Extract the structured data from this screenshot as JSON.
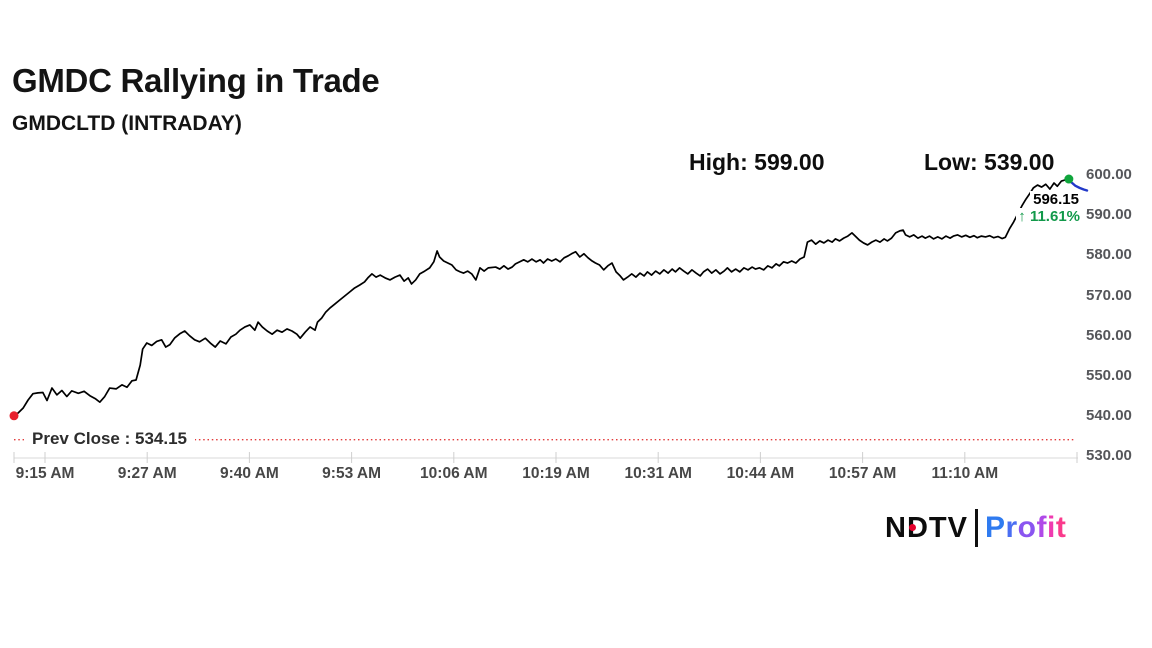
{
  "header": {
    "title": "GMDC Rallying in Trade",
    "subtitle": "GMDCLTD (INTRADAY)"
  },
  "stats": {
    "high_label": "High: 599.00",
    "low_label": "Low: 539.00"
  },
  "last_trade": {
    "price_label": "596.15",
    "up_arrow": "↑",
    "pct_label": "11.61%",
    "pct_color": "#12994a"
  },
  "prev_close": {
    "label": "Prev Close : 534.15",
    "value": 534.15,
    "line_color": "#e23a3a"
  },
  "logo": {
    "ndtv_text": "NDTV",
    "dot_color": "#e4002b",
    "profit_text": "Profit",
    "profit_letter_colors": [
      "#2f7bf0",
      "#4a6ef2",
      "#8a55f0",
      "#b04ae8",
      "#ef3bb0",
      "#fa3a8c"
    ]
  },
  "chart_data": {
    "type": "line",
    "title": "GMDCLTD intraday price",
    "x_axis": {
      "tick_labels": [
        "9:15 AM",
        "9:27 AM",
        "9:40 AM",
        "9:53 AM",
        "10:06 AM",
        "10:19 AM",
        "10:31 AM",
        "10:44 AM",
        "10:57 AM",
        "11:10 AM"
      ],
      "xlim_minutes": [
        0,
        130.1
      ],
      "grid": false
    },
    "y_axis": {
      "tick_labels": [
        "600.00",
        "590.00",
        "580.00",
        "570.00",
        "560.00",
        "550.00",
        "540.00",
        "530.00"
      ],
      "tick_values": [
        600,
        590,
        580,
        570,
        560,
        550,
        540,
        530
      ],
      "ylim": [
        530,
        600
      ],
      "grid": false
    },
    "high": 599.0,
    "low": 539.0,
    "last_price": 596.15,
    "change_pct": 11.61,
    "prev_close": 534.15,
    "line_color": "#000000",
    "axis_color": "#d8d8d8",
    "tick_color": "#cfcfcf",
    "tail": {
      "color": "#2239c9",
      "from_t": 127.9
    },
    "markers": {
      "open": {
        "t": 0,
        "price": 540.1,
        "color": "#e8212e"
      },
      "high": {
        "t": 127.9,
        "price": 599.0,
        "color": "#0fa53c"
      }
    },
    "series": [
      {
        "name": "price",
        "points": [
          [
            0,
            540.1
          ],
          [
            0.5,
            540.8
          ],
          [
            1.1,
            542.0
          ],
          [
            1.7,
            544.0
          ],
          [
            2.3,
            545.6
          ],
          [
            2.9,
            545.8
          ],
          [
            3.5,
            545.9
          ],
          [
            4.0,
            543.9
          ],
          [
            4.6,
            547.0
          ],
          [
            5.2,
            545.3
          ],
          [
            5.8,
            546.4
          ],
          [
            6.4,
            544.9
          ],
          [
            7.0,
            546.3
          ],
          [
            7.8,
            545.7
          ],
          [
            8.5,
            546.2
          ],
          [
            9.2,
            545.1
          ],
          [
            9.9,
            544.3
          ],
          [
            10.4,
            543.5
          ],
          [
            11.0,
            544.9
          ],
          [
            11.6,
            547.0
          ],
          [
            12.4,
            546.8
          ],
          [
            13.1,
            547.8
          ],
          [
            13.7,
            547.2
          ],
          [
            14.3,
            548.8
          ],
          [
            14.8,
            549.0
          ],
          [
            15.3,
            552.7
          ],
          [
            15.6,
            556.7
          ],
          [
            16.1,
            558.2
          ],
          [
            16.7,
            557.6
          ],
          [
            17.3,
            558.6
          ],
          [
            17.9,
            559.0
          ],
          [
            18.4,
            557.2
          ],
          [
            18.9,
            557.8
          ],
          [
            19.5,
            559.5
          ],
          [
            20.1,
            560.5
          ],
          [
            20.7,
            561.2
          ],
          [
            21.3,
            560.0
          ],
          [
            21.9,
            559.0
          ],
          [
            22.5,
            558.5
          ],
          [
            23.2,
            559.4
          ],
          [
            23.8,
            558.2
          ],
          [
            24.4,
            557.2
          ],
          [
            25.0,
            558.7
          ],
          [
            25.7,
            558.0
          ],
          [
            26.3,
            559.7
          ],
          [
            26.9,
            560.4
          ],
          [
            27.4,
            561.4
          ],
          [
            28.0,
            562.2
          ],
          [
            28.6,
            562.7
          ],
          [
            29.2,
            561.4
          ],
          [
            29.6,
            563.4
          ],
          [
            30.1,
            562.2
          ],
          [
            30.7,
            561.2
          ],
          [
            31.3,
            560.4
          ],
          [
            31.9,
            561.4
          ],
          [
            32.5,
            560.9
          ],
          [
            33.1,
            561.7
          ],
          [
            33.7,
            561.2
          ],
          [
            34.3,
            560.4
          ],
          [
            34.7,
            559.4
          ],
          [
            35.3,
            560.9
          ],
          [
            35.9,
            562.2
          ],
          [
            36.5,
            561.4
          ],
          [
            36.8,
            563.4
          ],
          [
            37.3,
            564.4
          ],
          [
            37.8,
            565.9
          ],
          [
            38.3,
            566.9
          ],
          [
            38.9,
            567.9
          ],
          [
            39.5,
            568.9
          ],
          [
            40.1,
            569.9
          ],
          [
            40.7,
            570.9
          ],
          [
            41.3,
            571.9
          ],
          [
            41.9,
            572.6
          ],
          [
            42.5,
            573.4
          ],
          [
            42.9,
            574.4
          ],
          [
            43.4,
            575.4
          ],
          [
            43.9,
            574.6
          ],
          [
            44.4,
            575.1
          ],
          [
            45.0,
            574.4
          ],
          [
            45.6,
            573.9
          ],
          [
            46.2,
            574.6
          ],
          [
            46.8,
            575.1
          ],
          [
            47.3,
            573.6
          ],
          [
            47.8,
            574.4
          ],
          [
            48.2,
            572.9
          ],
          [
            48.7,
            573.9
          ],
          [
            49.2,
            575.4
          ],
          [
            49.8,
            576.1
          ],
          [
            50.4,
            576.9
          ],
          [
            50.9,
            578.4
          ],
          [
            51.3,
            581.1
          ],
          [
            51.6,
            579.6
          ],
          [
            52.1,
            578.6
          ],
          [
            52.6,
            578.1
          ],
          [
            53.1,
            577.6
          ],
          [
            53.6,
            576.4
          ],
          [
            54.1,
            575.9
          ],
          [
            54.5,
            575.6
          ],
          [
            55.0,
            576.1
          ],
          [
            55.5,
            575.4
          ],
          [
            56.0,
            573.9
          ],
          [
            56.5,
            576.9
          ],
          [
            57.0,
            576.1
          ],
          [
            57.5,
            576.9
          ],
          [
            58.4,
            577.1
          ],
          [
            58.9,
            576.6
          ],
          [
            59.4,
            577.4
          ],
          [
            59.9,
            576.6
          ],
          [
            60.4,
            577.1
          ],
          [
            60.8,
            577.9
          ],
          [
            61.3,
            578.4
          ],
          [
            61.8,
            578.9
          ],
          [
            62.3,
            578.4
          ],
          [
            62.8,
            579.1
          ],
          [
            63.3,
            578.4
          ],
          [
            63.8,
            578.9
          ],
          [
            64.2,
            578.1
          ],
          [
            64.7,
            579.1
          ],
          [
            65.2,
            578.6
          ],
          [
            65.7,
            579.1
          ],
          [
            66.2,
            578.4
          ],
          [
            66.7,
            579.4
          ],
          [
            67.2,
            579.9
          ],
          [
            67.6,
            580.4
          ],
          [
            68.1,
            580.9
          ],
          [
            68.6,
            579.6
          ],
          [
            69.1,
            580.4
          ],
          [
            69.6,
            579.4
          ],
          [
            70.1,
            578.6
          ],
          [
            70.5,
            578.1
          ],
          [
            71.0,
            577.6
          ],
          [
            71.5,
            576.4
          ],
          [
            72.0,
            577.4
          ],
          [
            72.5,
            578.1
          ],
          [
            73.0,
            575.9
          ],
          [
            73.5,
            574.9
          ],
          [
            73.9,
            573.9
          ],
          [
            74.4,
            574.6
          ],
          [
            74.9,
            575.4
          ],
          [
            75.4,
            574.6
          ],
          [
            75.9,
            575.6
          ],
          [
            76.4,
            574.9
          ],
          [
            76.8,
            575.9
          ],
          [
            77.3,
            575.1
          ],
          [
            77.8,
            576.1
          ],
          [
            78.3,
            575.4
          ],
          [
            78.8,
            576.4
          ],
          [
            79.3,
            575.6
          ],
          [
            79.8,
            576.6
          ],
          [
            80.2,
            575.9
          ],
          [
            80.7,
            576.9
          ],
          [
            81.2,
            576.1
          ],
          [
            81.7,
            575.4
          ],
          [
            82.2,
            576.4
          ],
          [
            82.7,
            575.6
          ],
          [
            83.2,
            574.9
          ],
          [
            83.6,
            575.9
          ],
          [
            84.1,
            576.6
          ],
          [
            84.6,
            575.6
          ],
          [
            85.1,
            576.4
          ],
          [
            85.6,
            575.4
          ],
          [
            86.1,
            576.1
          ],
          [
            86.5,
            576.9
          ],
          [
            87.0,
            575.9
          ],
          [
            87.5,
            576.6
          ],
          [
            88.0,
            575.9
          ],
          [
            88.5,
            576.9
          ],
          [
            89.0,
            576.4
          ],
          [
            89.5,
            577.1
          ],
          [
            89.9,
            576.6
          ],
          [
            90.4,
            576.9
          ],
          [
            90.9,
            576.4
          ],
          [
            91.4,
            577.4
          ],
          [
            91.9,
            576.9
          ],
          [
            92.4,
            577.9
          ],
          [
            92.8,
            577.4
          ],
          [
            93.3,
            578.4
          ],
          [
            93.8,
            578.1
          ],
          [
            94.3,
            578.6
          ],
          [
            94.8,
            578.1
          ],
          [
            95.3,
            579.1
          ],
          [
            95.8,
            579.6
          ],
          [
            96.2,
            583.3
          ],
          [
            96.7,
            583.8
          ],
          [
            97.2,
            582.8
          ],
          [
            97.7,
            583.6
          ],
          [
            98.2,
            583.1
          ],
          [
            98.7,
            583.8
          ],
          [
            99.2,
            583.3
          ],
          [
            99.6,
            584.1
          ],
          [
            100.1,
            583.6
          ],
          [
            100.6,
            584.3
          ],
          [
            101.1,
            584.8
          ],
          [
            101.6,
            585.6
          ],
          [
            102.1,
            584.6
          ],
          [
            102.5,
            583.8
          ],
          [
            103.0,
            583.1
          ],
          [
            103.5,
            582.6
          ],
          [
            104.0,
            583.3
          ],
          [
            104.5,
            583.8
          ],
          [
            105.0,
            583.3
          ],
          [
            105.5,
            584.1
          ],
          [
            105.9,
            583.6
          ],
          [
            106.4,
            584.3
          ],
          [
            106.9,
            585.6
          ],
          [
            107.4,
            586.1
          ],
          [
            107.8,
            586.3
          ],
          [
            108.1,
            585.1
          ],
          [
            108.6,
            584.6
          ],
          [
            109.1,
            585.1
          ],
          [
            109.6,
            584.3
          ],
          [
            110.1,
            584.8
          ],
          [
            110.5,
            584.3
          ],
          [
            111.0,
            584.8
          ],
          [
            111.5,
            584.1
          ],
          [
            112.0,
            584.6
          ],
          [
            112.5,
            584.1
          ],
          [
            113.0,
            584.8
          ],
          [
            113.5,
            584.3
          ],
          [
            113.9,
            584.8
          ],
          [
            114.4,
            585.1
          ],
          [
            114.9,
            584.6
          ],
          [
            115.4,
            585.0
          ],
          [
            115.9,
            584.5
          ],
          [
            116.4,
            584.9
          ],
          [
            116.8,
            584.4
          ],
          [
            117.3,
            584.8
          ],
          [
            117.8,
            584.6
          ],
          [
            118.3,
            584.9
          ],
          [
            118.8,
            584.4
          ],
          [
            119.3,
            584.7
          ],
          [
            119.8,
            584.2
          ],
          [
            120.2,
            584.5
          ],
          [
            120.7,
            586.6
          ],
          [
            121.2,
            588.3
          ],
          [
            121.7,
            590.3
          ],
          [
            122.2,
            592.3
          ],
          [
            122.7,
            594.0
          ],
          [
            123.2,
            595.5
          ],
          [
            123.6,
            596.8
          ],
          [
            124.1,
            597.5
          ],
          [
            124.6,
            597.0
          ],
          [
            125.1,
            597.7
          ],
          [
            125.6,
            596.5
          ],
          [
            126.1,
            598.0
          ],
          [
            126.5,
            597.2
          ],
          [
            127.0,
            598.5
          ],
          [
            127.5,
            598.8
          ],
          [
            127.9,
            599.0
          ],
          [
            128.2,
            598.2
          ],
          [
            128.7,
            597.3
          ],
          [
            129.2,
            596.8
          ],
          [
            129.7,
            596.4
          ],
          [
            130.1,
            596.15
          ]
        ]
      }
    ]
  }
}
